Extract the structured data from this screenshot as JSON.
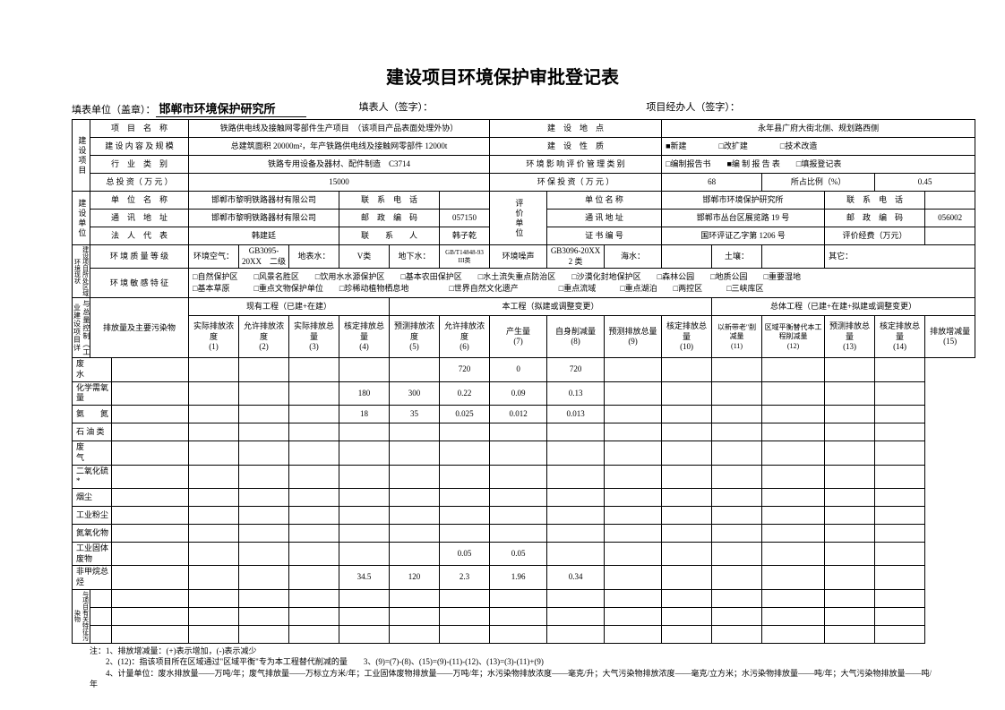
{
  "title": "建设项目环境保护审批登记表",
  "header": {
    "fill_unit_label": "填表单位（盖章）：",
    "fill_unit": "邯郸市环境保护研究所",
    "fill_person_label": "填表人（签字）：",
    "pm_label": "项目经办人（签字）："
  },
  "s1": {
    "side": "建设项目",
    "r1": {
      "k": "项　目　名　称",
      "v": "铁路供电线及接触网零部件生产项目　（该项目产品表面处理外协）",
      "k2": "建　设　地　点",
      "v2": "永年县广府大街北侧、规划路西侧"
    },
    "r2": {
      "k": "建 设 内 容 及 规 模",
      "v": "总建筑面积 20000m²，年产铁路供电线及接触网零部件 12000t",
      "k2": "建　设　性　质",
      "opts": "■新建　　　　□改扩建　　　　□技术改造"
    },
    "r3": {
      "k": "行　业　类　别",
      "v": "铁路专用设备及器材、配件制造　C3714",
      "k2": "环 境 影 响 评 价 管 理 类 别",
      "opts": "□编制报告书　　■编 制 报 告 表　　□填报登记表"
    },
    "r4": {
      "k": "总 投 资（ 万 元 ）",
      "v": "15000",
      "k2": "环 保 投 资（ 万 元 ）",
      "v2": "68",
      "k3": "所占比例（%）",
      "v3": "0.45"
    }
  },
  "s2": {
    "side": "建设单位",
    "r1": {
      "k": "单　位　名　称",
      "v": "邯郸市黎明铁路器材有限公司",
      "k2": "联　系　电　话",
      "v2": "",
      "c": "评价单位",
      "k3": "单 位 名 称",
      "v3": "邯郸市环境保护研究所",
      "k4": "联　系　电　话",
      "v4": ""
    },
    "r2": {
      "k": "通　讯　地　址",
      "v": "邯郸市黎明铁路器材有限公司",
      "k2": "邮　政　编　码",
      "v2": "057150",
      "k3": "通 讯 地 址",
      "v3": "邯郸市丛台区展览路 19 号",
      "k4": "邮　政　编　码",
      "v4": "056002"
    },
    "r3": {
      "k": "法　人　代　表",
      "v": "韩建廷",
      "k2": "联　　系　　人",
      "v2": "韩子乾",
      "k3": "证 书 编 号",
      "v3": "国环评证乙字第 1206 号",
      "k4": "评价经费（万元）",
      "v4": ""
    }
  },
  "s3": {
    "side": "建设项目所处区域环境现状",
    "r1": {
      "k": "环 境 质 量 等 级",
      "a1": "环境空气：",
      "a2": "GB3095-20XX　二级",
      "a3": "地表水：",
      "a4": "V类",
      "a5": "地下水：",
      "a6": "GB/T14848-93 III类",
      "a7": "环境噪声",
      "a8": "GB3096-20XX 2 类",
      "a9": "海水：",
      "a10": "",
      "a11": "土壤：",
      "a12": "",
      "a13": "其它："
    },
    "r2": {
      "k": "环 境 敏 感 特 征",
      "l1": "□自然保护区　　□风景名胜区　　□饮用水水源保护区　　□基本农田保护区　　□水土流失重点防治区　　□沙漠化封地保护区　　□森林公园　　□地质公园　　□重要湿地",
      "l2": "□基本草原　　　□重点文物保护单位　　□珍稀动植物栖息地　　　　　□世界自然文化遗产　　　　　□重点流域　　　□重点湖泊　　□两控区　　　□三峡库区"
    }
  },
  "s4": {
    "side": "污染物排放达标与总量控制（工业建设项目详填）",
    "grp": {
      "a": "现有工程（已建+在建）",
      "b": "本工程（拟建或调整变更）",
      "c": "总体工程（已建+在建+拟建或调整变更）"
    },
    "h": {
      "main": "排放量及主要污染物",
      "c1": "实际排放浓度",
      "n1": "(1)",
      "c2": "允许排放浓度",
      "n2": "(2)",
      "c3": "实际排放总量",
      "n3": "(3)",
      "c4": "核定排放总量",
      "n4": "(4)",
      "c5": "预测排放浓度",
      "n5": "(5)",
      "c6": "允许排放浓度",
      "n6": "(6)",
      "c7": "产生量",
      "n7": "(7)",
      "c8": "自身削减量",
      "n8": "(8)",
      "c9": "预测排放总量",
      "n9": "(9)",
      "c10": "核定排放总量",
      "n10": "(10)",
      "c11": "以新带老\"削减量",
      "n11": "(11)",
      "c12": "区域平衡替代本工程削减量",
      "n12": "(12)",
      "c13": "预测排放总量",
      "n13": "(13)",
      "c14": "核定排放总量",
      "n14": "(14)",
      "c15": "排放增减量",
      "n15": "(15)"
    },
    "rows": [
      {
        "name": "废　　　　　水",
        "d": [
          "",
          "",
          "",
          "",
          "",
          "",
          "720",
          "0",
          "720",
          "",
          "",
          "",
          "",
          "",
          ""
        ]
      },
      {
        "name": "化学需氧量",
        "d": [
          "",
          "",
          "",
          "",
          "180",
          "300",
          "0.22",
          "0.09",
          "0.13",
          "",
          "",
          "",
          "",
          "",
          ""
        ]
      },
      {
        "name": "氨　　氮",
        "d": [
          "",
          "",
          "",
          "",
          "18",
          "35",
          "0.025",
          "0.012",
          "0.013",
          "",
          "",
          "",
          "",
          "",
          ""
        ]
      },
      {
        "name": "石 油 类",
        "d": [
          "",
          "",
          "",
          "",
          "",
          "",
          "",
          "",
          "",
          "",
          "",
          "",
          "",
          "",
          ""
        ]
      },
      {
        "name": "废　　　　　气",
        "d": [
          "",
          "",
          "",
          "",
          "",
          "",
          "",
          "",
          "",
          "",
          "",
          "",
          "",
          "",
          ""
        ]
      },
      {
        "name": "二氧化硫*",
        "d": [
          "",
          "",
          "",
          "",
          "",
          "",
          "",
          "",
          "",
          "",
          "",
          "",
          "",
          "",
          ""
        ]
      },
      {
        "name": "烟尘",
        "d": [
          "",
          "",
          "",
          "",
          "",
          "",
          "",
          "",
          "",
          "",
          "",
          "",
          "",
          "",
          ""
        ]
      },
      {
        "name": "工业粉尘",
        "d": [
          "",
          "",
          "",
          "",
          "",
          "",
          "",
          "",
          "",
          "",
          "",
          "",
          "",
          "",
          ""
        ]
      },
      {
        "name": "氮氧化物",
        "d": [
          "",
          "",
          "",
          "",
          "",
          "",
          "",
          "",
          "",
          "",
          "",
          "",
          "",
          "",
          ""
        ]
      },
      {
        "name": "工业固体废物",
        "d": [
          "",
          "",
          "",
          "",
          "",
          "",
          "0.05",
          "0.05",
          "",
          "",
          "",
          "",
          "",
          "",
          ""
        ]
      },
      {
        "name": "非甲烷总烃",
        "d": [
          "",
          "",
          "",
          "",
          "34.5",
          "120",
          "2.3",
          "1.96",
          "0.34",
          "",
          "",
          "",
          "",
          "",
          ""
        ]
      }
    ],
    "extra_side": "与项目有关特征污染物",
    "extra_rows": [
      {
        "name": "",
        "d": [
          "",
          "",
          "",
          "",
          "",
          "",
          "",
          "",
          "",
          "",
          "",
          "",
          "",
          "",
          ""
        ]
      },
      {
        "name": "",
        "d": [
          "",
          "",
          "",
          "",
          "",
          "",
          "",
          "",
          "",
          "",
          "",
          "",
          "",
          "",
          ""
        ]
      },
      {
        "name": "",
        "d": [
          "",
          "",
          "",
          "",
          "",
          "",
          "",
          "",
          "",
          "",
          "",
          "",
          "",
          "",
          ""
        ]
      }
    ]
  },
  "notes": {
    "l1": "注：1、排放增减量：(+)表示增加，(-)表示减少",
    "l2": "　　2、(12)：指该项目所在区域通过\"区域平衡\"专为本工程替代削减的量　　3、(9)=(7)-(8)、(15)=(9)-(11)-(12)、(13)=(3)-(11)+(9)",
    "l3": "　　4、计量单位：废水排放量——万吨/年；废气排放量——万标立方米/年；工业固体废物排放量——万吨/年；水污染物排放浓度——毫克/升；大气污染物排放浓度——毫克/立方米；水污染物排放量——吨/年；大气污染物排放量——吨/年"
  }
}
